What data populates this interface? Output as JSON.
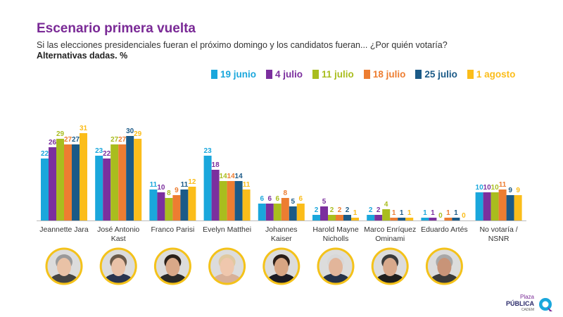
{
  "header": {
    "title": "Escenario primera vuelta",
    "subtitle": "Si las elecciones presidenciales fueran el próximo domingo y los candidatos fueran... ¿Por quién votaría?",
    "subtitle2": "Alternativas dadas. %"
  },
  "colors": {
    "title": "#7a2a96",
    "series": [
      "#1aa7dc",
      "#7b2f9e",
      "#a9bd1e",
      "#ed7d31",
      "#1b5a87",
      "#fbbd1a"
    ]
  },
  "chart_data": {
    "type": "bar",
    "title": "",
    "xlabel": "",
    "ylabel": "",
    "ylim": [
      0,
      34
    ],
    "grid": false,
    "legend": "top-right",
    "categories": [
      "Jeannette Jara",
      "José Antonio Kast",
      "Franco Parisi",
      "Evelyn Matthei",
      "Johannes Kaiser",
      "Harold Mayne Nicholls",
      "Marco Enríquez Ominami",
      "Eduardo Artés",
      "No votaría / NSNR"
    ],
    "category_lines": [
      [
        "Jeannette Jara"
      ],
      [
        "José Antonio",
        "Kast"
      ],
      [
        "Franco Parisi"
      ],
      [
        "Evelyn Matthei"
      ],
      [
        "Johannes",
        "Kaiser"
      ],
      [
        "Harold Mayne",
        "Nicholls"
      ],
      [
        "Marco Enríquez",
        "Ominami"
      ],
      [
        "Eduardo Artés"
      ],
      [
        "No votaría /",
        "NSNR"
      ]
    ],
    "series": [
      {
        "name": "19 junio",
        "values": [
          22,
          23,
          11,
          23,
          6,
          2,
          2,
          1,
          10
        ]
      },
      {
        "name": "4 julio",
        "values": [
          26,
          22,
          10,
          18,
          6,
          5,
          2,
          1,
          10
        ]
      },
      {
        "name": "11 julio",
        "values": [
          29,
          27,
          8,
          14,
          6,
          2,
          4,
          0,
          10
        ]
      },
      {
        "name": "18 julio",
        "values": [
          27,
          27,
          9,
          14,
          8,
          2,
          1,
          1,
          11
        ]
      },
      {
        "name": "25 julio",
        "values": [
          27,
          30,
          11,
          14,
          5,
          2,
          1,
          1,
          9
        ]
      },
      {
        "name": "1 agosto",
        "values": [
          31,
          29,
          12,
          11,
          6,
          1,
          1,
          0,
          9
        ]
      }
    ]
  },
  "photos": [
    {
      "name": "jara-photo",
      "skin": "#e9c2a6",
      "hair": "#9a9a9a",
      "shirt": "#444444",
      "bg": "#f4c21a"
    },
    {
      "name": "kast-photo",
      "skin": "#eac2a8",
      "hair": "#6b5a4a",
      "shirt": "#2a3550",
      "bg": "#f4c21a"
    },
    {
      "name": "parisi-photo",
      "skin": "#d9a888",
      "hair": "#2b2019",
      "shirt": "#2a2a2a",
      "bg": "#f4c21a"
    },
    {
      "name": "matthei-photo",
      "skin": "#efc7ad",
      "hair": "#e0c9a0",
      "shirt": "#d8b098",
      "bg": "#f4c21a"
    },
    {
      "name": "kaiser-photo",
      "skin": "#d7a583",
      "hair": "#2a1d17",
      "shirt": "#1b1b24",
      "bg": "#f4c21a"
    },
    {
      "name": "mayne-photo",
      "skin": "#e2b59a",
      "hair": "#d8d8d8",
      "shirt": "#26324a",
      "bg": "#f4c21a"
    },
    {
      "name": "meo-photo",
      "skin": "#d8a98c",
      "hair": "#3a3a3a",
      "shirt": "#1f1f1f",
      "bg": "#f4c21a"
    },
    {
      "name": "artes-photo",
      "skin": "#c89478",
      "hair": "#a8a8a8",
      "shirt": "#3a3a3a",
      "bg": "#f4c21a"
    }
  ],
  "logo": {
    "line1": "Plaza",
    "line2": "PÚBLICA",
    "line3": "CADEM"
  }
}
